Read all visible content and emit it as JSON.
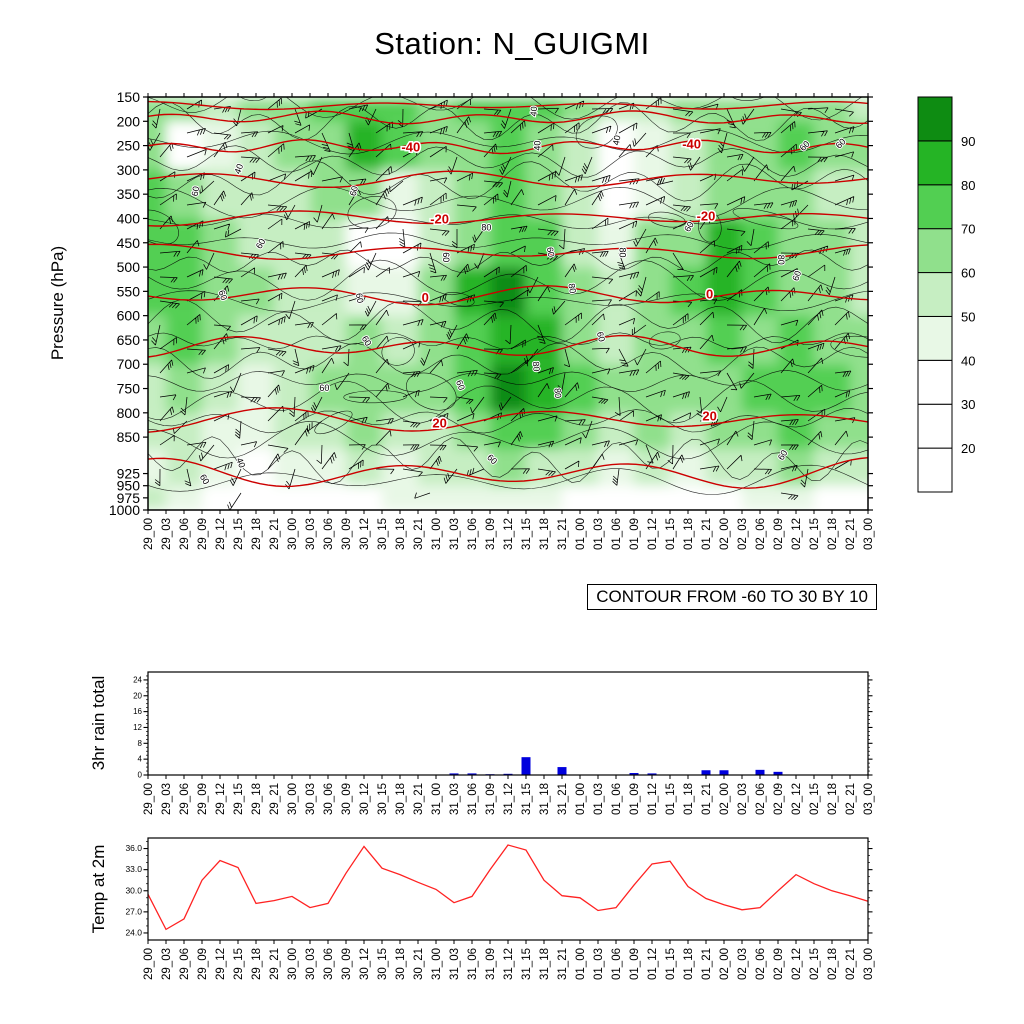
{
  "title": "Station: N_GUIGMI",
  "contour_note": "CONTOUR FROM -60 TO 30 BY 10",
  "axes": {
    "pressure_label": "Pressure (hPa)",
    "rain_label": "3hr rain total",
    "temp_label": "Temp at 2m"
  },
  "time_labels": [
    "29_00",
    "29_03",
    "29_06",
    "29_09",
    "29_12",
    "29_15",
    "29_18",
    "29_21",
    "30_00",
    "30_03",
    "30_06",
    "30_09",
    "30_12",
    "30_15",
    "30_18",
    "30_21",
    "31_00",
    "31_03",
    "31_06",
    "31_09",
    "31_12",
    "31_15",
    "31_18",
    "31_21",
    "01_00",
    "01_03",
    "01_06",
    "01_09",
    "01_12",
    "01_15",
    "01_18",
    "01_21",
    "02_00",
    "02_03",
    "02_06",
    "02_09",
    "02_12",
    "02_15",
    "02_18",
    "02_21",
    "03_00"
  ],
  "colors": {
    "contour_red": "#cc0000",
    "bar_blue": "#0000dd",
    "temp_line": "#ff2222",
    "frame": "#000000"
  },
  "chart_data": [
    {
      "type": "heatmap",
      "name": "pressure-time humidity cross-section with temperature contours and wind barbs",
      "ylabel": "Pressure (hPa)",
      "ylim": [
        150,
        1000
      ],
      "pressure_ticks": [
        150,
        200,
        250,
        300,
        350,
        400,
        450,
        500,
        550,
        600,
        650,
        700,
        750,
        800,
        850,
        925,
        950,
        975,
        1000
      ],
      "x_categories": [
        "29_00",
        "29_06",
        "29_12",
        "29_18",
        "30_00",
        "30_06",
        "30_12",
        "30_18",
        "31_00",
        "31_06",
        "31_12",
        "31_18",
        "01_00",
        "01_06",
        "01_12",
        "01_18",
        "02_00",
        "02_06",
        "02_12",
        "02_18",
        "03_00"
      ],
      "row_pressure_edges": [
        150,
        200,
        300,
        400,
        500,
        600,
        700,
        800,
        875,
        950,
        1000
      ],
      "values": [
        [
          65,
          60,
          55,
          60,
          65,
          70,
          75,
          70,
          65,
          70,
          75,
          70,
          60,
          50,
          55,
          60,
          65,
          60,
          65,
          60,
          55
        ],
        [
          60,
          35,
          45,
          55,
          60,
          65,
          80,
          70,
          60,
          65,
          70,
          65,
          55,
          35,
          40,
          55,
          60,
          65,
          70,
          65,
          60
        ],
        [
          70,
          60,
          55,
          50,
          55,
          60,
          65,
          45,
          55,
          60,
          70,
          65,
          50,
          30,
          45,
          55,
          60,
          65,
          60,
          55,
          50
        ],
        [
          75,
          70,
          60,
          55,
          50,
          55,
          35,
          25,
          55,
          65,
          75,
          70,
          55,
          45,
          60,
          65,
          85,
          75,
          65,
          60,
          55
        ],
        [
          70,
          75,
          65,
          60,
          55,
          50,
          45,
          40,
          60,
          80,
          90,
          75,
          60,
          50,
          65,
          70,
          80,
          70,
          65,
          60,
          55
        ],
        [
          60,
          70,
          60,
          55,
          50,
          55,
          60,
          55,
          65,
          75,
          85,
          80,
          65,
          55,
          60,
          65,
          70,
          65,
          70,
          65,
          60
        ],
        [
          55,
          60,
          50,
          45,
          55,
          60,
          65,
          60,
          60,
          70,
          90,
          85,
          70,
          60,
          65,
          60,
          65,
          70,
          75,
          70,
          65
        ],
        [
          50,
          55,
          45,
          40,
          50,
          55,
          60,
          55,
          55,
          60,
          70,
          75,
          65,
          55,
          60,
          55,
          60,
          65,
          70,
          65,
          60
        ],
        [
          45,
          50,
          40,
          35,
          40,
          45,
          50,
          45,
          50,
          55,
          60,
          55,
          50,
          45,
          50,
          45,
          50,
          55,
          60,
          55,
          50
        ],
        [
          55,
          40,
          25,
          20,
          25,
          30,
          35,
          40,
          45,
          40,
          45,
          40,
          35,
          30,
          35,
          30,
          35,
          40,
          45,
          35,
          25
        ]
      ],
      "colorbar_ticks": [
        20,
        30,
        40,
        50,
        60,
        70,
        80,
        90
      ],
      "colorbar_colors": [
        "#ffffff",
        "#ffffff",
        "#ffffff",
        "#e8f8e6",
        "#c6eec2",
        "#90e08c",
        "#52cf52",
        "#25b425",
        "#0e8c12"
      ],
      "red_contours": {
        "from": -60,
        "to": 30,
        "by": 10
      },
      "red_contour_lines": [
        {
          "p": 168,
          "amp": 3
        },
        {
          "p": 193,
          "amp": 5
        },
        {
          "p": 252,
          "amp": 5
        },
        {
          "p": 320,
          "amp": 6
        },
        {
          "p": 399,
          "amp": 6
        },
        {
          "p": 470,
          "amp": 6
        },
        {
          "p": 558,
          "amp": 7
        },
        {
          "p": 664,
          "amp": 8
        },
        {
          "p": 815,
          "amp": 9
        },
        {
          "p": 926,
          "amp": 12
        }
      ],
      "red_contour_labels": [
        {
          "text": "-40",
          "fx": 0.365,
          "p": 252
        },
        {
          "text": "-40",
          "fx": 0.755,
          "p": 246
        },
        {
          "text": "-20",
          "fx": 0.405,
          "p": 400
        },
        {
          "text": "-20",
          "fx": 0.775,
          "p": 394
        },
        {
          "text": "0",
          "fx": 0.385,
          "p": 562
        },
        {
          "text": "0",
          "fx": 0.78,
          "p": 554
        },
        {
          "text": "20",
          "fx": 0.405,
          "p": 820
        },
        {
          "text": "20",
          "fx": 0.78,
          "p": 806
        }
      ],
      "black_inline_labels": [
        {
          "text": "40",
          "fx": 0.13,
          "p": 300,
          "rot": -70
        },
        {
          "text": "60",
          "fx": 0.07,
          "p": 345,
          "rot": -80
        },
        {
          "text": "60",
          "fx": 0.16,
          "p": 455,
          "rot": -60
        },
        {
          "text": "60",
          "fx": 0.1,
          "p": 560,
          "rot": 70
        },
        {
          "text": "60",
          "fx": 0.29,
          "p": 565,
          "rot": 80
        },
        {
          "text": "80",
          "fx": 0.47,
          "p": 425,
          "rot": 0
        },
        {
          "text": "60",
          "fx": 0.41,
          "p": 480,
          "rot": 90
        },
        {
          "text": "60",
          "fx": 0.555,
          "p": 470,
          "rot": 80
        },
        {
          "text": "80",
          "fx": 0.655,
          "p": 470,
          "rot": 90
        },
        {
          "text": "60",
          "fx": 0.755,
          "p": 420,
          "rot": -60
        },
        {
          "text": "40",
          "fx": 0.545,
          "p": 250,
          "rot": -90
        },
        {
          "text": "40",
          "fx": 0.655,
          "p": 240,
          "rot": -80
        },
        {
          "text": "60",
          "fx": 0.915,
          "p": 255,
          "rot": -45
        },
        {
          "text": "60",
          "fx": 0.965,
          "p": 250,
          "rot": -45
        },
        {
          "text": "80",
          "fx": 0.875,
          "p": 485,
          "rot": 90
        },
        {
          "text": "60",
          "fx": 0.905,
          "p": 520,
          "rot": -70
        },
        {
          "text": "60",
          "fx": 0.29,
          "p": 345,
          "rot": -75
        },
        {
          "text": "40",
          "fx": 0.54,
          "p": 180,
          "rot": -85
        },
        {
          "text": "60",
          "fx": 0.3,
          "p": 655,
          "rot": 60
        },
        {
          "text": "80",
          "fx": 0.535,
          "p": 705,
          "rot": 85
        },
        {
          "text": "60",
          "fx": 0.43,
          "p": 745,
          "rot": 70
        },
        {
          "text": "60",
          "fx": 0.245,
          "p": 755,
          "rot": 0
        },
        {
          "text": "80",
          "fx": 0.565,
          "p": 760,
          "rot": 85
        },
        {
          "text": "60",
          "fx": 0.075,
          "p": 940,
          "rot": 60
        },
        {
          "text": "40",
          "fx": 0.125,
          "p": 905,
          "rot": 70
        },
        {
          "text": "60",
          "fx": 0.475,
          "p": 900,
          "rot": 45
        },
        {
          "text": "60",
          "fx": 0.885,
          "p": 890,
          "rot": -60
        },
        {
          "text": "60",
          "fx": 0.625,
          "p": 645,
          "rot": 75
        },
        {
          "text": "80",
          "fx": 0.585,
          "p": 545,
          "rot": 80
        }
      ],
      "wind_barbs": true
    },
    {
      "type": "bar",
      "ylabel": "3hr rain total",
      "values": [
        0,
        0,
        0,
        0,
        0,
        0,
        0,
        0,
        0,
        0,
        0,
        0,
        0,
        0,
        0,
        0,
        0,
        0.4,
        0.4,
        0.2,
        0.3,
        4.5,
        0,
        2.0,
        0,
        0,
        0,
        0.5,
        0.4,
        0,
        0,
        1.2,
        1.2,
        0,
        1.3,
        0.8,
        0,
        0,
        0,
        0,
        0
      ],
      "ylim": [
        0,
        26
      ],
      "yticks": [
        0,
        4,
        8,
        12,
        16,
        20,
        24
      ],
      "minor_step": 1
    },
    {
      "type": "line",
      "ylabel": "Temp at 2m",
      "values": [
        29.5,
        24.5,
        26.0,
        31.5,
        34.3,
        33.3,
        28.2,
        28.6,
        29.2,
        27.6,
        28.2,
        32.5,
        36.3,
        33.2,
        32.3,
        31.2,
        30.2,
        28.3,
        29.2,
        33.0,
        36.5,
        35.8,
        31.5,
        29.3,
        29.0,
        27.2,
        27.6,
        30.8,
        33.8,
        34.2,
        30.6,
        28.9,
        28.0,
        27.3,
        27.6,
        30.0,
        32.3,
        31.0,
        30.0,
        29.3,
        28.5
      ],
      "ylim": [
        23,
        37.5
      ],
      "yticks": [
        24,
        27,
        30,
        33,
        36
      ],
      "minor_step": 1
    }
  ]
}
